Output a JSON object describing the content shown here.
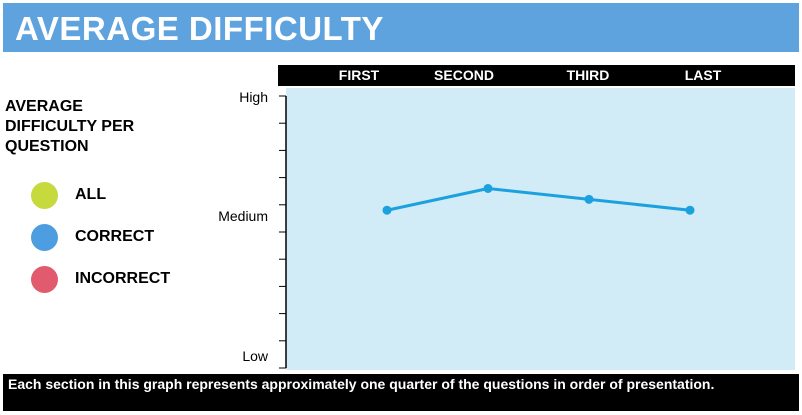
{
  "title": "AVERAGE DIFFICULTY",
  "legend": {
    "title": "AVERAGE DIFFICULTY PER QUESTION",
    "items": [
      {
        "label": "ALL",
        "color": "#c6d93d"
      },
      {
        "label": "CORRECT",
        "color": "#4c9ee0"
      },
      {
        "label": "INCORRECT",
        "color": "#e25a6e"
      }
    ]
  },
  "footer": "Each section in this graph represents approximately one quarter of the questions in order of presentation.",
  "colors": {
    "title_bar": "#5fa3de",
    "plot_bg": "#d1ecf7",
    "line": "#1ca1df"
  },
  "chart_data": {
    "type": "line",
    "categories": [
      "FIRST",
      "SECOND",
      "THIRD",
      "LAST"
    ],
    "y_tick_labels": [
      "High",
      "Medium",
      "Low"
    ],
    "ylim": [
      0,
      1
    ],
    "series": [
      {
        "values": [
          0.58,
          0.66,
          0.62,
          0.58
        ]
      }
    ]
  }
}
